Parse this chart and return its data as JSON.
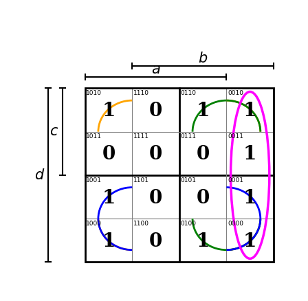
{
  "grid_labels": [
    [
      "1010",
      "1110",
      "0110",
      "0010"
    ],
    [
      "1011",
      "1111",
      "0111",
      "0011"
    ],
    [
      "1001",
      "1101",
      "0101",
      "0001"
    ],
    [
      "1000",
      "1100",
      "0100",
      "0000"
    ]
  ],
  "values": [
    [
      1,
      0,
      1,
      1
    ],
    [
      0,
      0,
      0,
      1
    ],
    [
      1,
      0,
      0,
      1
    ],
    [
      1,
      0,
      1,
      1
    ]
  ],
  "background_color": "#ffffff",
  "orange_color": "#FFA500",
  "green_color": "#008000",
  "magenta_color": "#FF00FF",
  "blue_color": "#0000FF"
}
